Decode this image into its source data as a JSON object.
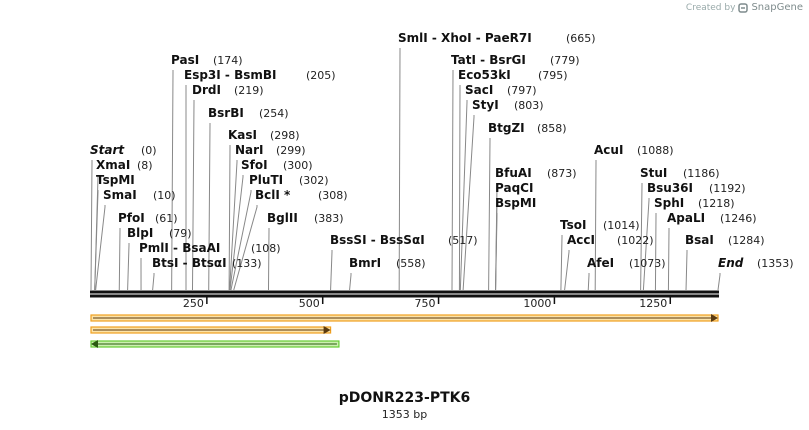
{
  "credit": {
    "prefix": "Created by",
    "brand": "SnapGene"
  },
  "title": "pDONR223-PTK6",
  "length_label": "1353 bp",
  "sequence_length": 1353,
  "ruler_ticks": [
    "250",
    "500",
    "750",
    "1000",
    "1250"
  ],
  "colors": {
    "backbone": "#111111",
    "orf": "#f0a020",
    "orf_fill": "#fce3a8",
    "feature2": "#f0a020",
    "green": "#66cc33",
    "green_fill": "#ccf0b0",
    "line": "#888888"
  },
  "sites": [
    {
      "name": "Start",
      "pos": 0,
      "pos_label": "(0)",
      "italic": true
    },
    {
      "name": "XmaI",
      "pos": 8,
      "pos_label": "(8)"
    },
    {
      "name": "TspMI",
      "pos": 8,
      "pos_label": ""
    },
    {
      "name": "SmaI",
      "pos": 10,
      "pos_label": "(10)"
    },
    {
      "name": "PfoI",
      "pos": 61,
      "pos_label": "(61)"
    },
    {
      "name": "BlpI",
      "pos": 79,
      "pos_label": "(79)"
    },
    {
      "name": "PmlI  -  BsaAI",
      "pos": 108,
      "pos_label": "(108)"
    },
    {
      "name": "BtsI  -  BtsαI",
      "pos": 133,
      "pos_label": "(133)"
    },
    {
      "name": "PasI",
      "pos": 174,
      "pos_label": "(174)"
    },
    {
      "name": "Esp3I  -  BsmBI",
      "pos": 205,
      "pos_label": "(205)"
    },
    {
      "name": "DrdI",
      "pos": 219,
      "pos_label": "(219)"
    },
    {
      "name": "BsrBI",
      "pos": 254,
      "pos_label": "(254)"
    },
    {
      "name": "KasI",
      "pos": 298,
      "pos_label": "(298)"
    },
    {
      "name": "NarI",
      "pos": 299,
      "pos_label": "(299)"
    },
    {
      "name": "SfoI",
      "pos": 300,
      "pos_label": "(300)"
    },
    {
      "name": "PluTI",
      "pos": 302,
      "pos_label": "(302)"
    },
    {
      "name": "BclI *",
      "pos": 308,
      "pos_label": "(308)"
    },
    {
      "name": "BglII",
      "pos": 383,
      "pos_label": "(383)"
    },
    {
      "name": "BssSI  -  BssSαI",
      "pos": 517,
      "pos_label": "(517)"
    },
    {
      "name": "BmrI",
      "pos": 558,
      "pos_label": "(558)"
    },
    {
      "name": "SmlI  -  XhoI  -  PaeR7I",
      "pos": 665,
      "pos_label": "(665)"
    },
    {
      "name": "TatI  -  BsrGI",
      "pos": 779,
      "pos_label": "(779)"
    },
    {
      "name": "Eco53kI",
      "pos": 795,
      "pos_label": "(795)"
    },
    {
      "name": "SacI",
      "pos": 797,
      "pos_label": "(797)"
    },
    {
      "name": "StyI",
      "pos": 803,
      "pos_label": "(803)"
    },
    {
      "name": "BtgZI",
      "pos": 858,
      "pos_label": "(858)"
    },
    {
      "name": "BfuAI",
      "pos": 873,
      "pos_label": "(873)"
    },
    {
      "name": "PaqCI",
      "pos": 873,
      "pos_label": ""
    },
    {
      "name": "BspMI",
      "pos": 873,
      "pos_label": ""
    },
    {
      "name": "TsoI",
      "pos": 1014,
      "pos_label": "(1014)"
    },
    {
      "name": "AccI",
      "pos": 1022,
      "pos_label": "(1022)"
    },
    {
      "name": "AfeI",
      "pos": 1073,
      "pos_label": "(1073)"
    },
    {
      "name": "AcuI",
      "pos": 1088,
      "pos_label": "(1088)"
    },
    {
      "name": "StuI",
      "pos": 1186,
      "pos_label": "(1186)"
    },
    {
      "name": "Bsu36I",
      "pos": 1192,
      "pos_label": "(1192)"
    },
    {
      "name": "SphI",
      "pos": 1218,
      "pos_label": "(1218)"
    },
    {
      "name": "ApaLI",
      "pos": 1246,
      "pos_label": "(1246)"
    },
    {
      "name": "BsaI",
      "pos": 1284,
      "pos_label": "(1284)"
    },
    {
      "name": "End",
      "pos": 1353,
      "pos_label": "(1353)",
      "italic": true
    }
  ],
  "features": [
    {
      "name": "orf-full",
      "start": 0,
      "end": 1353,
      "direction": "forward"
    },
    {
      "name": "orf-partial",
      "start": 0,
      "end": 517,
      "direction": "forward"
    },
    {
      "name": "feature-reverse",
      "start": 0,
      "end": 535,
      "direction": "reverse"
    }
  ]
}
